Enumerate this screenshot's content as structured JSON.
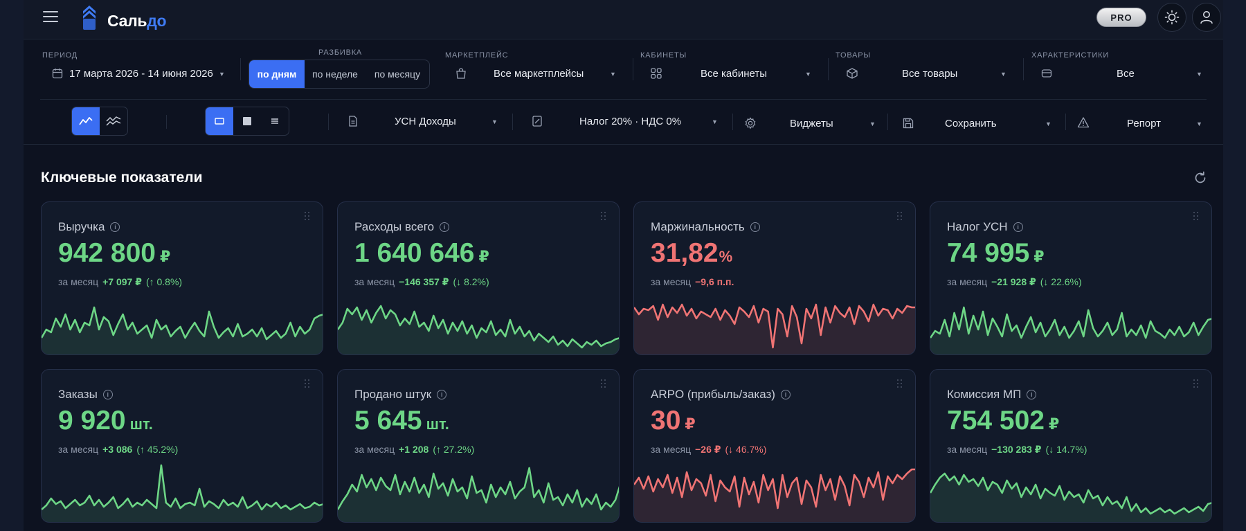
{
  "app": {
    "logo_part1": "Саль",
    "logo_part2": "до",
    "pro_badge": "PRO"
  },
  "filters": {
    "period": {
      "label": "ПЕРИОД",
      "value": "17 марта 2026 - 14 июня 2026"
    },
    "breakdown": {
      "label": "РАЗБИВКА",
      "options": [
        "по дням",
        "по неделе",
        "по месяцу"
      ],
      "selected": "по дням"
    },
    "marketplace": {
      "label": "МАРКЕТПЛЕЙС",
      "value": "Все маркетплейсы"
    },
    "cabinets": {
      "label": "КАБИНЕТЫ",
      "value": "Все кабинеты"
    },
    "products": {
      "label": "ТОВАРЫ",
      "value": "Все товары"
    },
    "characteristics": {
      "label": "ХАРАКТЕРИСТИКИ",
      "value": "Все"
    }
  },
  "toolbar": {
    "tax_mode": "УСН Доходы",
    "tax_rate": "Налог 20% · НДС 0%",
    "widgets": "Виджеты",
    "save": "Сохранить",
    "report": "Репорт"
  },
  "section": {
    "title": "Ключевые показатели"
  },
  "colors": {
    "accent": "#3b6ef3",
    "positive": "#6dd686",
    "negative": "#f07474"
  },
  "cards": [
    {
      "title": "Выручка",
      "value": "942 800",
      "unit": "₽",
      "period": "за месяц",
      "delta": "+7 097 ₽",
      "pct": "(↑ 0.8%)",
      "tone": "g",
      "spark": [
        18,
        30,
        26,
        46,
        34,
        52,
        30,
        44,
        26,
        40,
        36,
        62,
        30,
        48,
        42,
        22,
        38,
        52,
        30,
        40,
        24,
        30,
        36,
        18,
        44,
        30,
        36,
        20,
        28,
        34,
        18,
        30,
        40,
        28,
        20,
        56,
        34,
        18,
        26,
        32,
        20,
        38,
        20,
        24,
        30,
        20,
        32,
        16,
        22,
        28,
        18,
        24,
        40,
        20,
        34,
        24,
        30,
        46,
        50,
        52
      ]
    },
    {
      "title": "Расходы всего",
      "value": "1 640 646",
      "unit": "₽",
      "period": "за месяц",
      "delta": "−146 357 ₽",
      "pct": "(↓ 8.2%)",
      "tone": "g",
      "spark": [
        30,
        40,
        60,
        52,
        62,
        44,
        58,
        40,
        54,
        64,
        46,
        58,
        52,
        36,
        46,
        38,
        56,
        34,
        40,
        28,
        50,
        32,
        44,
        24,
        40,
        28,
        42,
        24,
        36,
        18,
        32,
        26,
        42,
        22,
        30,
        20,
        44,
        24,
        34,
        20,
        28,
        14,
        24,
        18,
        12,
        20,
        8,
        14,
        6,
        16,
        10,
        4,
        12,
        8,
        14,
        6,
        10,
        12,
        16,
        18
      ]
    },
    {
      "title": "Маржинальность",
      "value": "31,82",
      "unit": "%",
      "period": "за месяц",
      "delta": "−9,6 п.п.",
      "pct": "",
      "tone": "r",
      "spark": [
        62,
        52,
        60,
        58,
        64,
        44,
        66,
        48,
        62,
        54,
        66,
        50,
        60,
        46,
        56,
        52,
        48,
        60,
        44,
        58,
        50,
        38,
        62,
        56,
        48,
        64,
        40,
        60,
        56,
        4,
        60,
        52,
        20,
        64,
        48,
        10,
        60,
        46,
        66,
        22,
        62,
        40,
        64,
        54,
        48,
        62,
        38,
        64,
        56,
        42,
        66,
        50,
        60,
        58,
        46,
        60,
        54,
        64,
        62,
        62
      ]
    },
    {
      "title": "Налог УСН",
      "value": "74 995",
      "unit": "₽",
      "period": "за месяц",
      "delta": "−21 928 ₽",
      "pct": "(↓ 22.6%)",
      "tone": "g",
      "spark": [
        18,
        28,
        24,
        44,
        20,
        54,
        30,
        62,
        24,
        50,
        30,
        56,
        22,
        46,
        34,
        20,
        52,
        28,
        36,
        18,
        34,
        48,
        26,
        40,
        20,
        30,
        44,
        22,
        34,
        18,
        28,
        42,
        20,
        58,
        32,
        20,
        28,
        40,
        22,
        30,
        54,
        20,
        30,
        22,
        36,
        18,
        42,
        28,
        24,
        18,
        30,
        22,
        34,
        20,
        26,
        40,
        22,
        34,
        44,
        46
      ]
    },
    {
      "title": "Заказы",
      "value": "9 920",
      "unit": "шт.",
      "period": "за месяц",
      "delta": "+3 086",
      "pct": "(↑ 45.2%)",
      "tone": "g",
      "spark": [
        12,
        18,
        28,
        20,
        24,
        14,
        20,
        26,
        18,
        22,
        32,
        18,
        26,
        16,
        22,
        30,
        14,
        20,
        28,
        16,
        22,
        18,
        26,
        20,
        14,
        76,
        22,
        16,
        28,
        14,
        20,
        22,
        18,
        42,
        16,
        24,
        20,
        14,
        26,
        18,
        22,
        16,
        30,
        14,
        18,
        24,
        12,
        20,
        16,
        22,
        14,
        18,
        12,
        16,
        20,
        14,
        16,
        22,
        18,
        20
      ]
    },
    {
      "title": "Продано штук",
      "value": "5 645",
      "unit": "шт.",
      "period": "за месяц",
      "delta": "+1 208",
      "pct": "(↑ 27.2%)",
      "tone": "g",
      "spark": [
        12,
        24,
        34,
        48,
        38,
        62,
        44,
        56,
        40,
        58,
        46,
        40,
        62,
        34,
        52,
        38,
        58,
        36,
        48,
        30,
        64,
        42,
        50,
        32,
        56,
        38,
        44,
        28,
        60,
        36,
        40,
        22,
        48,
        30,
        44,
        34,
        52,
        28,
        38,
        44,
        72,
        30,
        40,
        22,
        50,
        26,
        30,
        18,
        34,
        22,
        40,
        16,
        28,
        20,
        34,
        12,
        22,
        16,
        26,
        48
      ]
    },
    {
      "title": "ARPO (прибыль/заказ)",
      "value": "30",
      "unit": "₽",
      "period": "за месяц",
      "delta": "−26 ₽",
      "pct": "(↓ 46.7%)",
      "tone": "r",
      "spark": [
        48,
        58,
        42,
        60,
        38,
        56,
        44,
        62,
        36,
        58,
        30,
        66,
        40,
        56,
        50,
        32,
        62,
        24,
        54,
        44,
        38,
        60,
        16,
        58,
        34,
        52,
        22,
        62,
        40,
        56,
        14,
        62,
        30,
        50,
        58,
        20,
        54,
        44,
        16,
        62,
        40,
        56,
        26,
        60,
        46,
        18,
        62,
        52,
        30,
        58,
        44,
        66,
        26,
        60,
        50,
        62,
        56,
        64,
        70,
        70
      ]
    },
    {
      "title": "Комиссия МП",
      "value": "754 502",
      "unit": "₽",
      "period": "за месяц",
      "delta": "−130 283 ₽",
      "pct": "(↓ 14.7%)",
      "tone": "g",
      "spark": [
        36,
        48,
        58,
        64,
        54,
        60,
        48,
        62,
        52,
        56,
        46,
        58,
        40,
        52,
        48,
        36,
        54,
        42,
        50,
        30,
        44,
        34,
        48,
        28,
        42,
        36,
        32,
        46,
        26,
        38,
        30,
        34,
        22,
        40,
        28,
        32,
        18,
        30,
        20,
        24,
        14,
        30,
        10,
        20,
        8,
        14,
        6,
        10,
        14,
        8,
        12,
        6,
        10,
        14,
        8,
        12,
        16,
        10,
        20,
        22
      ]
    }
  ]
}
